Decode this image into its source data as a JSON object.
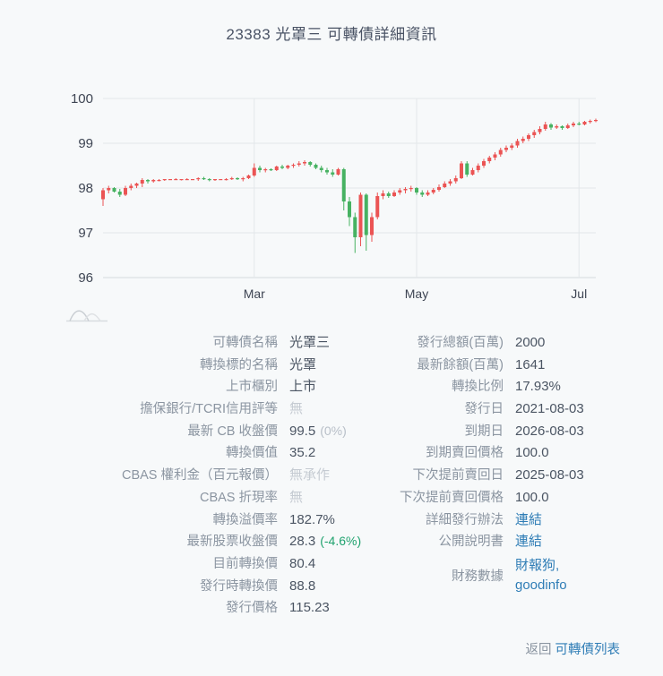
{
  "page": {
    "title": "23383 光罩三 可轉債詳細資訊"
  },
  "colors": {
    "background": "#f7f9fa",
    "title_text": "#4a5365",
    "label_text": "#8b95a1",
    "value_text": "#4b5563",
    "muted_text": "#c5cbd2",
    "link_text": "#2f7db6",
    "green_change": "#1fa26e",
    "axis_text": "#3e4553",
    "gridline": "#e3e7ea",
    "candle_up": "#eb5454",
    "candle_down": "#47b262"
  },
  "chart_data": {
    "type": "candlestick",
    "title": "",
    "xlabel": "",
    "ylabel": "",
    "ylim": [
      96,
      100
    ],
    "y_ticks": [
      96,
      97,
      98,
      99,
      100
    ],
    "grid": true,
    "x_tick_labels": [
      "Mar",
      "May",
      "Jul"
    ],
    "x_tick_indices": [
      27,
      56,
      85
    ],
    "up_color": "#eb5454",
    "down_color": "#47b262",
    "candles_ohlc": [
      [
        97.75,
        98.0,
        97.6,
        97.95
      ],
      [
        97.95,
        98.05,
        97.88,
        98.0
      ],
      [
        98.0,
        98.02,
        97.9,
        97.92
      ],
      [
        97.92,
        97.98,
        97.8,
        97.85
      ],
      [
        97.85,
        98.05,
        97.82,
        98.0
      ],
      [
        98.0,
        98.1,
        97.95,
        98.05
      ],
      [
        98.05,
        98.12,
        98.0,
        98.1
      ],
      [
        98.1,
        98.22,
        98.02,
        98.18
      ],
      [
        98.18,
        98.2,
        98.1,
        98.15
      ],
      [
        98.15,
        98.2,
        98.12,
        98.18
      ],
      [
        98.18,
        98.2,
        98.15,
        98.18
      ],
      [
        98.18,
        98.2,
        98.16,
        98.2
      ],
      [
        98.2,
        98.2,
        98.18,
        98.2
      ],
      [
        98.2,
        98.22,
        98.18,
        98.2
      ],
      [
        98.2,
        98.2,
        98.17,
        98.2
      ],
      [
        98.2,
        98.22,
        98.18,
        98.2
      ],
      [
        98.2,
        98.2,
        98.18,
        98.2
      ],
      [
        98.2,
        98.24,
        98.16,
        98.22
      ],
      [
        98.22,
        98.25,
        98.18,
        98.2
      ],
      [
        98.2,
        98.22,
        98.15,
        98.18
      ],
      [
        98.18,
        98.2,
        98.16,
        98.2
      ],
      [
        98.2,
        98.2,
        98.18,
        98.2
      ],
      [
        98.2,
        98.22,
        98.17,
        98.2
      ],
      [
        98.2,
        98.25,
        98.18,
        98.22
      ],
      [
        98.22,
        98.24,
        98.18,
        98.2
      ],
      [
        98.2,
        98.25,
        98.15,
        98.22
      ],
      [
        98.22,
        98.3,
        98.2,
        98.28
      ],
      [
        98.28,
        98.55,
        98.25,
        98.45
      ],
      [
        98.45,
        98.5,
        98.35,
        98.4
      ],
      [
        98.4,
        98.45,
        98.35,
        98.42
      ],
      [
        98.42,
        98.44,
        98.38,
        98.4
      ],
      [
        98.4,
        98.5,
        98.38,
        98.48
      ],
      [
        98.48,
        98.52,
        98.42,
        98.45
      ],
      [
        98.45,
        98.52,
        98.42,
        98.5
      ],
      [
        98.5,
        98.55,
        98.45,
        98.52
      ],
      [
        98.52,
        98.6,
        98.48,
        98.55
      ],
      [
        98.55,
        98.62,
        98.5,
        98.58
      ],
      [
        98.58,
        98.6,
        98.48,
        98.52
      ],
      [
        98.52,
        98.55,
        98.42,
        98.45
      ],
      [
        98.45,
        98.5,
        98.35,
        98.4
      ],
      [
        98.4,
        98.45,
        98.3,
        98.35
      ],
      [
        98.35,
        98.42,
        98.25,
        98.3
      ],
      [
        98.3,
        98.45,
        98.28,
        98.42
      ],
      [
        98.42,
        98.45,
        97.5,
        97.7
      ],
      [
        97.7,
        97.8,
        97.15,
        97.35
      ],
      [
        97.35,
        97.45,
        96.55,
        96.9
      ],
      [
        96.9,
        97.9,
        96.7,
        97.85
      ],
      [
        97.85,
        97.88,
        96.6,
        96.95
      ],
      [
        96.95,
        97.45,
        96.8,
        97.35
      ],
      [
        97.35,
        97.9,
        97.3,
        97.82
      ],
      [
        97.82,
        97.95,
        97.75,
        97.88
      ],
      [
        97.88,
        97.92,
        97.78,
        97.82
      ],
      [
        97.82,
        97.95,
        97.8,
        97.9
      ],
      [
        97.9,
        98.0,
        97.85,
        97.95
      ],
      [
        97.95,
        98.02,
        97.88,
        97.98
      ],
      [
        97.98,
        98.05,
        97.92,
        98.0
      ],
      [
        98.0,
        98.02,
        97.85,
        97.9
      ],
      [
        97.9,
        97.95,
        97.8,
        97.85
      ],
      [
        97.85,
        97.95,
        97.82,
        97.9
      ],
      [
        97.9,
        98.0,
        97.86,
        97.96
      ],
      [
        97.96,
        98.08,
        97.92,
        98.02
      ],
      [
        98.02,
        98.15,
        98.0,
        98.1
      ],
      [
        98.1,
        98.2,
        98.05,
        98.15
      ],
      [
        98.15,
        98.28,
        98.1,
        98.22
      ],
      [
        98.22,
        98.6,
        98.2,
        98.55
      ],
      [
        98.55,
        98.6,
        98.25,
        98.3
      ],
      [
        98.3,
        98.45,
        98.28,
        98.4
      ],
      [
        98.4,
        98.55,
        98.35,
        98.5
      ],
      [
        98.5,
        98.65,
        98.45,
        98.6
      ],
      [
        98.6,
        98.72,
        98.55,
        98.68
      ],
      [
        98.68,
        98.8,
        98.62,
        98.75
      ],
      [
        98.75,
        98.9,
        98.7,
        98.85
      ],
      [
        98.85,
        98.95,
        98.8,
        98.9
      ],
      [
        98.9,
        99.0,
        98.85,
        98.95
      ],
      [
        98.95,
        99.1,
        98.9,
        99.05
      ],
      [
        99.05,
        99.15,
        99.0,
        99.1
      ],
      [
        99.1,
        99.22,
        99.05,
        99.18
      ],
      [
        99.18,
        99.3,
        99.12,
        99.25
      ],
      [
        99.25,
        99.38,
        99.2,
        99.32
      ],
      [
        99.32,
        99.48,
        99.28,
        99.42
      ],
      [
        99.42,
        99.45,
        99.3,
        99.35
      ],
      [
        99.35,
        99.42,
        99.32,
        99.38
      ],
      [
        99.38,
        99.4,
        99.3,
        99.34
      ],
      [
        99.34,
        99.44,
        99.32,
        99.4
      ],
      [
        99.4,
        99.48,
        99.36,
        99.44
      ],
      [
        99.44,
        99.48,
        99.4,
        99.42
      ],
      [
        99.42,
        99.5,
        99.4,
        99.48
      ],
      [
        99.48,
        99.53,
        99.44,
        99.5
      ],
      [
        99.5,
        99.55,
        99.47,
        99.52
      ]
    ]
  },
  "details": {
    "left": [
      {
        "label": "可轉債名稱",
        "value": "光罩三",
        "type": "text"
      },
      {
        "label": "轉換標的名稱",
        "value": "光罩",
        "type": "text"
      },
      {
        "label": "上市櫃別",
        "value": "上市",
        "type": "text"
      },
      {
        "label": "擔保銀行/TCRI信用評等",
        "value": "無",
        "type": "muted"
      },
      {
        "label": "最新 CB 收盤價",
        "value": "99.5",
        "type": "text",
        "extra": "(0%)",
        "extra_style": "muted"
      },
      {
        "label": "轉換價值",
        "value": "35.2",
        "type": "text"
      },
      {
        "label": "CBAS 權利金（百元報價）",
        "value": "無承作",
        "type": "muted"
      },
      {
        "label": "CBAS 折現率",
        "value": "無",
        "type": "muted"
      },
      {
        "label": "轉換溢價率",
        "value": "182.7%",
        "type": "text"
      },
      {
        "label": "最新股票收盤價",
        "value": "28.3",
        "type": "text",
        "extra": "(-4.6%)",
        "extra_style": "green"
      },
      {
        "label": "目前轉換價",
        "value": "80.4",
        "type": "text"
      },
      {
        "label": "發行時轉換價",
        "value": "88.8",
        "type": "text"
      },
      {
        "label": "發行價格",
        "value": "115.23",
        "type": "text"
      }
    ],
    "right": [
      {
        "label": "發行總額(百萬)",
        "value": "2000",
        "type": "text"
      },
      {
        "label": "最新餘額(百萬)",
        "value": "1641",
        "type": "text"
      },
      {
        "label": "轉換比例",
        "value": "17.93%",
        "type": "text"
      },
      {
        "label": "發行日",
        "value": "2021-08-03",
        "type": "text"
      },
      {
        "label": "到期日",
        "value": "2026-08-03",
        "type": "text"
      },
      {
        "label": "到期賣回價格",
        "value": "100.0",
        "type": "text"
      },
      {
        "label": "下次提前賣回日",
        "value": "2025-08-03",
        "type": "text"
      },
      {
        "label": "下次提前賣回價格",
        "value": "100.0",
        "type": "text"
      },
      {
        "label": "詳細發行辦法",
        "value": "連結",
        "type": "link"
      },
      {
        "label": "公開說明書",
        "value": "連結",
        "type": "link"
      },
      {
        "label": "財務數據",
        "type": "links",
        "links": [
          "財報狗,",
          "goodinfo"
        ]
      }
    ]
  },
  "footer": {
    "back_prefix": "返回",
    "back_link": "可轉債列表"
  },
  "icons": {
    "navigator": "area-chart-icon"
  }
}
